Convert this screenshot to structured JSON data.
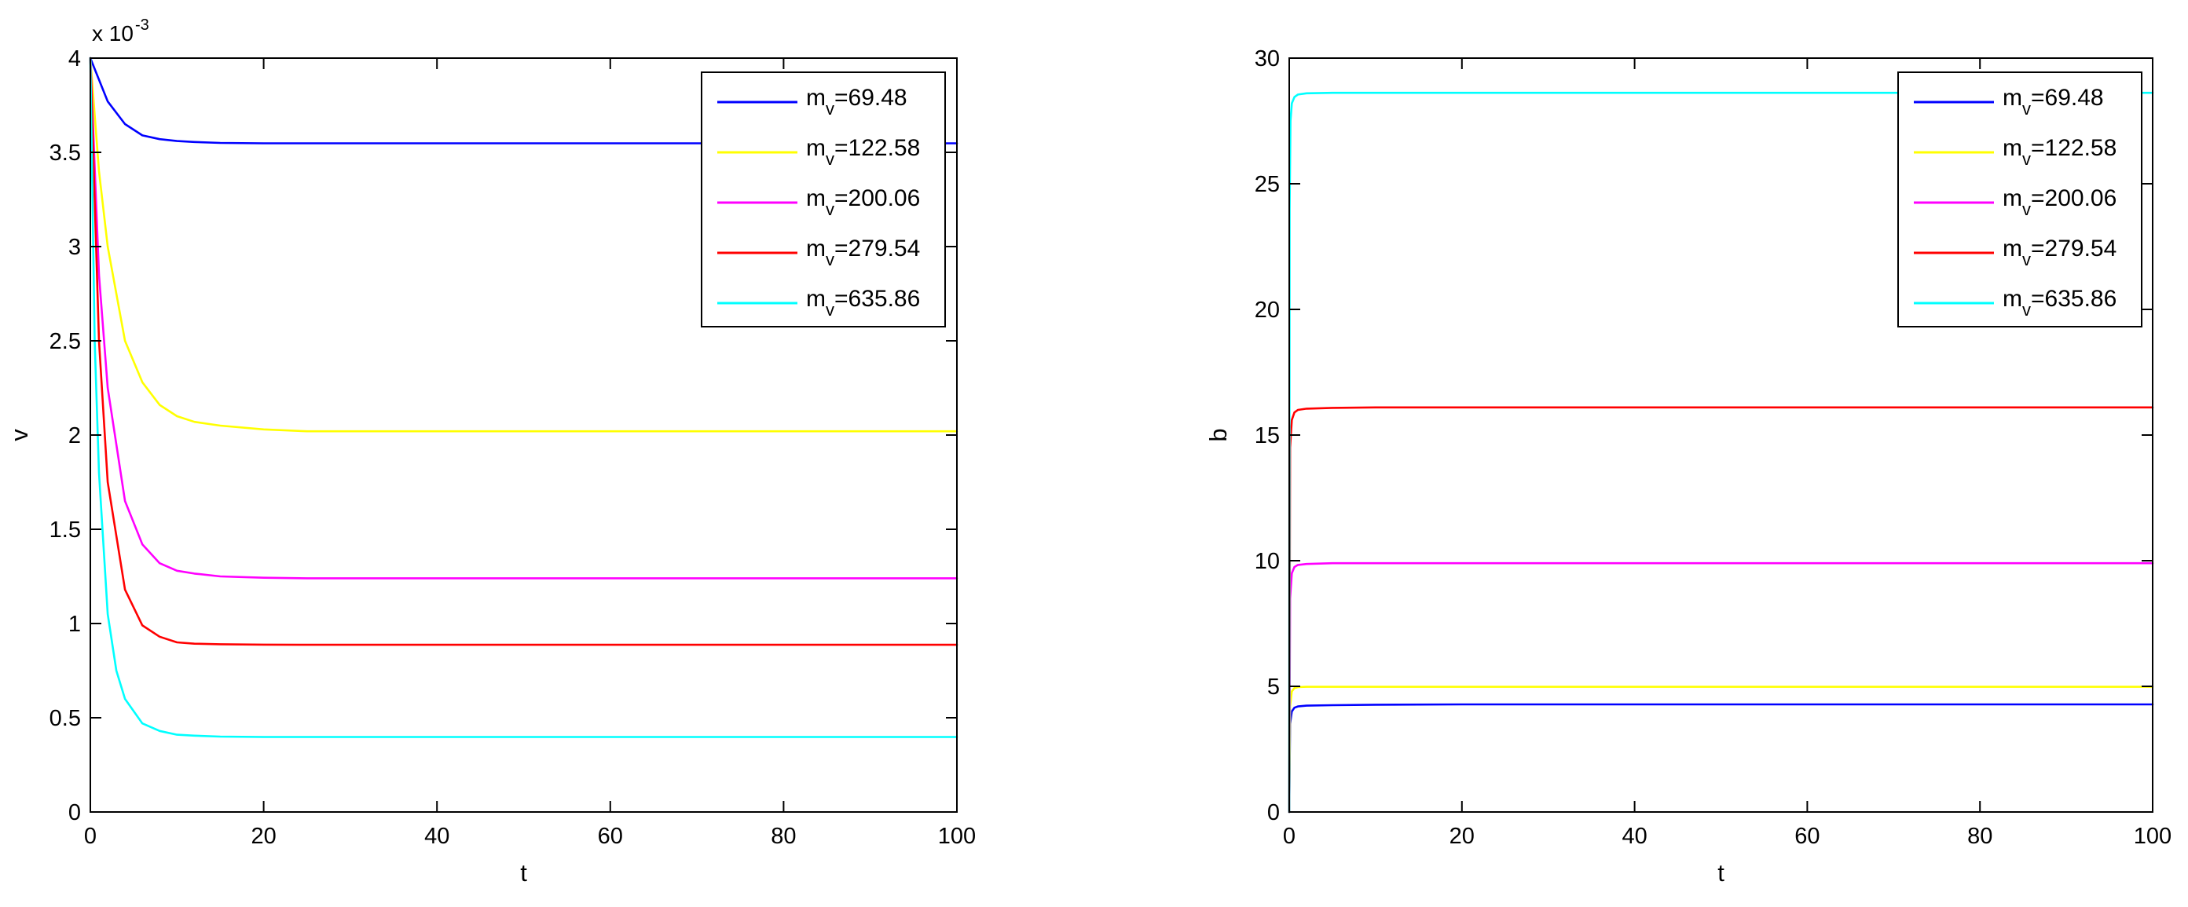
{
  "chart_data": [
    {
      "type": "line",
      "xlabel": "t",
      "ylabel": "v",
      "xlim": [
        0,
        100
      ],
      "ylim": [
        0,
        0.004
      ],
      "x_ticks": [
        "0",
        "20",
        "40",
        "60",
        "80",
        "100"
      ],
      "y_ticks": [
        "0",
        "0.5",
        "1",
        "1.5",
        "2",
        "2.5",
        "3",
        "3.5",
        "4"
      ],
      "y_tick_values": [
        0,
        0.0005,
        0.001,
        0.0015,
        0.002,
        0.0025,
        0.003,
        0.0035,
        0.004
      ],
      "y_exponent": {
        "base": "x 10",
        "power": "-3"
      },
      "legend_position": "top-right",
      "grid": false,
      "series": [
        {
          "name": "m",
          "name_sub": "v",
          "name_value": "=69.48",
          "color": "#0000ff",
          "x": [
            0,
            2,
            4,
            6,
            8,
            10,
            12,
            15,
            20,
            30,
            40,
            60,
            80,
            100
          ],
          "y": [
            0.004,
            0.00377,
            0.00365,
            0.00359,
            0.00357,
            0.00356,
            0.003555,
            0.00355,
            0.003548,
            0.003548,
            0.003548,
            0.003548,
            0.003548,
            0.003548
          ]
        },
        {
          "name": "m",
          "name_sub": "v",
          "name_value": "=122.58",
          "color": "#ffff00",
          "x": [
            0,
            1,
            2,
            4,
            6,
            8,
            10,
            12,
            15,
            20,
            25,
            30,
            40,
            60,
            80,
            100
          ],
          "y": [
            0.004,
            0.0034,
            0.003,
            0.0025,
            0.00228,
            0.00216,
            0.0021,
            0.00207,
            0.00205,
            0.00203,
            0.00202,
            0.00202,
            0.00202,
            0.00202,
            0.00202,
            0.00202
          ]
        },
        {
          "name": "m",
          "name_sub": "v",
          "name_value": "=200.06",
          "color": "#ff00ff",
          "x": [
            0,
            1,
            2,
            4,
            6,
            8,
            10,
            12,
            15,
            20,
            25,
            30,
            40,
            60,
            80,
            100
          ],
          "y": [
            0.004,
            0.00285,
            0.00225,
            0.00165,
            0.00142,
            0.00132,
            0.00128,
            0.001265,
            0.00125,
            0.001243,
            0.00124,
            0.00124,
            0.00124,
            0.00124,
            0.00124,
            0.00124
          ]
        },
        {
          "name": "m",
          "name_sub": "v",
          "name_value": "=279.54",
          "color": "#ff0000",
          "x": [
            0,
            1,
            2,
            4,
            6,
            8,
            10,
            12,
            15,
            20,
            25,
            30,
            40,
            60,
            80,
            100
          ],
          "y": [
            0.004,
            0.0025,
            0.00175,
            0.00118,
            0.00099,
            0.00093,
            0.0009,
            0.000893,
            0.00089,
            0.000888,
            0.000887,
            0.000887,
            0.000887,
            0.000887,
            0.000887,
            0.000887
          ]
        },
        {
          "name": "m",
          "name_sub": "v",
          "name_value": "=635.86",
          "color": "#00ffff",
          "x": [
            0,
            0.5,
            1,
            2,
            3,
            4,
            6,
            8,
            10,
            12,
            15,
            20,
            30,
            40,
            60,
            80,
            100
          ],
          "y": [
            0.004,
            0.0025,
            0.0018,
            0.00105,
            0.00075,
            0.0006,
            0.00047,
            0.00043,
            0.00041,
            0.000405,
            0.0004,
            0.000398,
            0.000398,
            0.000398,
            0.000398,
            0.000398,
            0.000398
          ]
        }
      ]
    },
    {
      "type": "line",
      "xlabel": "t",
      "ylabel": "b",
      "xlim": [
        0,
        100
      ],
      "ylim": [
        0,
        30
      ],
      "x_ticks": [
        "0",
        "20",
        "40",
        "60",
        "80",
        "100"
      ],
      "y_ticks": [
        "0",
        "5",
        "10",
        "15",
        "20",
        "25",
        "30"
      ],
      "y_tick_values": [
        0,
        5,
        10,
        15,
        20,
        25,
        30
      ],
      "legend_position": "top-right",
      "grid": false,
      "series": [
        {
          "name": "m",
          "name_sub": "v",
          "name_value": "=69.48",
          "color": "#0000ff",
          "x": [
            0,
            0.1,
            0.3,
            0.6,
            1,
            2,
            5,
            10,
            20,
            40,
            60,
            80,
            100
          ],
          "y": [
            0,
            3.5,
            4.0,
            4.15,
            4.2,
            4.23,
            4.25,
            4.27,
            4.28,
            4.28,
            4.28,
            4.28,
            4.28
          ]
        },
        {
          "name": "m",
          "name_sub": "v",
          "name_value": "=122.58",
          "color": "#ffff00",
          "x": [
            0,
            0.1,
            0.3,
            0.6,
            1,
            2,
            5,
            10,
            20,
            40,
            60,
            80,
            100
          ],
          "y": [
            0,
            4.2,
            4.8,
            4.93,
            4.97,
            4.98,
            4.98,
            4.98,
            4.98,
            4.98,
            4.98,
            4.98,
            4.98
          ]
        },
        {
          "name": "m",
          "name_sub": "v",
          "name_value": "=200.06",
          "color": "#ff00ff",
          "x": [
            0,
            0.1,
            0.3,
            0.6,
            1,
            2,
            5,
            10,
            20,
            40,
            60,
            80,
            100
          ],
          "y": [
            0,
            8.5,
            9.5,
            9.75,
            9.83,
            9.87,
            9.9,
            9.9,
            9.9,
            9.9,
            9.9,
            9.9,
            9.9
          ]
        },
        {
          "name": "m",
          "name_sub": "v",
          "name_value": "=279.54",
          "color": "#ff0000",
          "x": [
            0,
            0.1,
            0.3,
            0.6,
            1,
            2,
            5,
            10,
            20,
            40,
            60,
            80,
            100
          ],
          "y": [
            0,
            14.5,
            15.6,
            15.9,
            16.0,
            16.05,
            16.08,
            16.1,
            16.1,
            16.1,
            16.1,
            16.1,
            16.1
          ]
        },
        {
          "name": "m",
          "name_sub": "v",
          "name_value": "=635.86",
          "color": "#00ffff",
          "x": [
            0,
            0.05,
            0.15,
            0.3,
            0.6,
            1,
            2,
            5,
            10,
            20,
            40,
            60,
            80,
            100
          ],
          "y": [
            0,
            24,
            27.5,
            28.2,
            28.45,
            28.55,
            28.6,
            28.62,
            28.62,
            28.62,
            28.62,
            28.62,
            28.62,
            28.62
          ]
        }
      ]
    }
  ]
}
